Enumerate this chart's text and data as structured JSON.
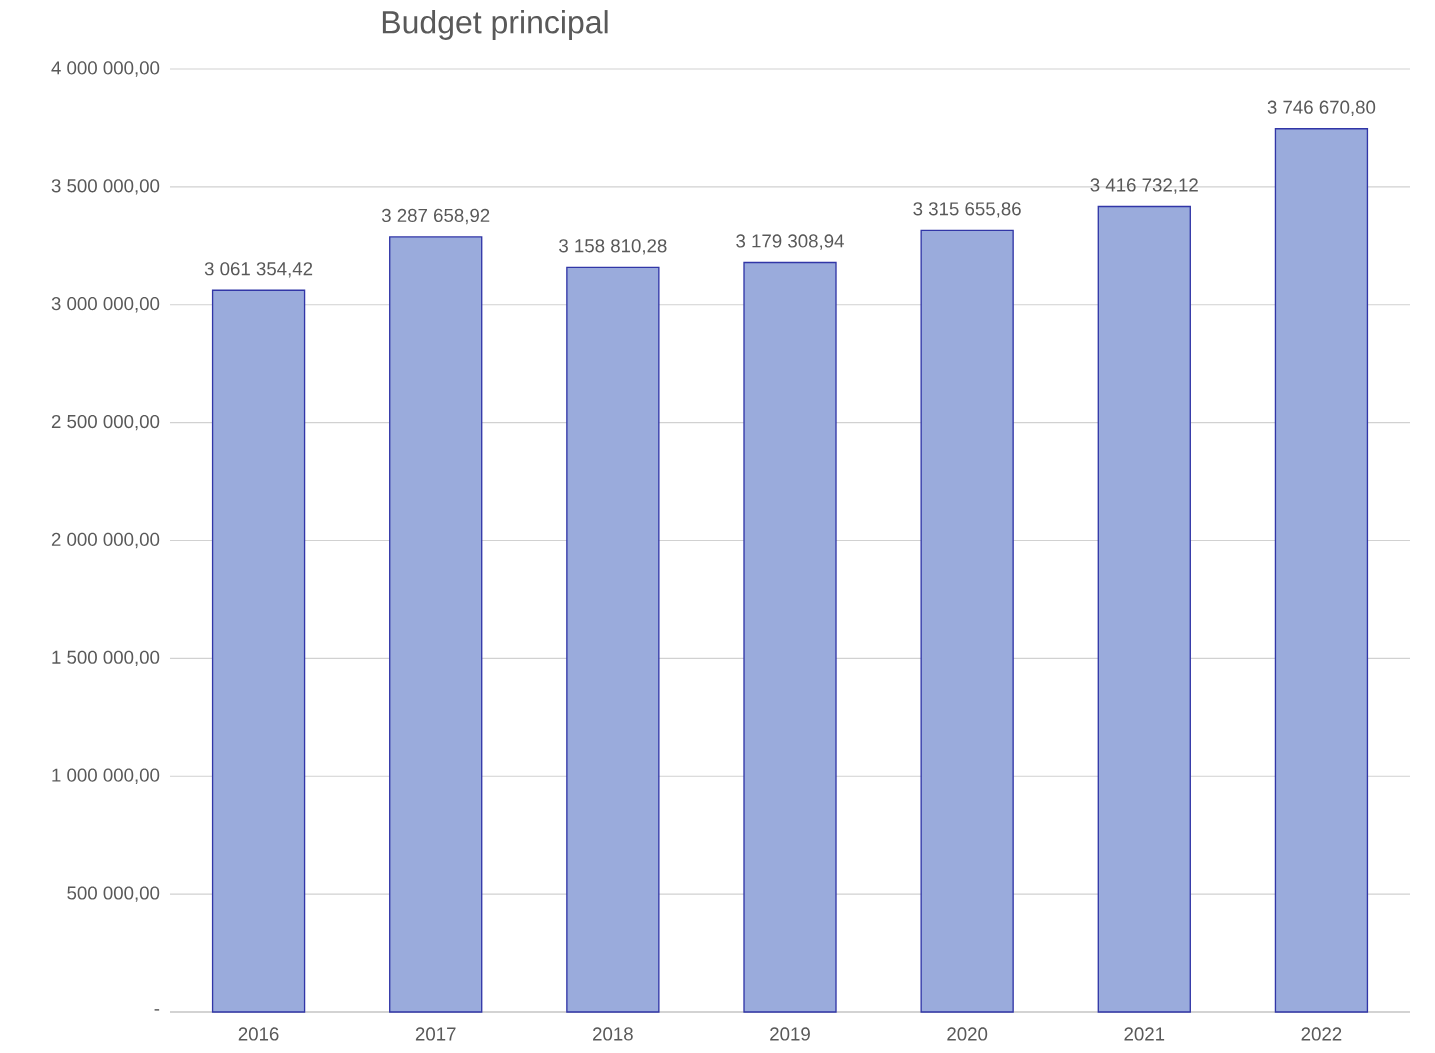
{
  "chart_data": {
    "type": "bar",
    "title": "Budget principal",
    "categories": [
      "2016",
      "2017",
      "2018",
      "2019",
      "2020",
      "2021",
      "2022"
    ],
    "values": [
      3061354.42,
      3287658.92,
      3158810.28,
      3179308.94,
      3315655.86,
      3416732.12,
      3746670.8
    ],
    "value_labels": [
      "3 061 354,42",
      "3 287 658,92",
      "3 158 810,28",
      "3 179 308,94",
      "3 315 655,86",
      "3 416 732,12",
      "3 746 670,80"
    ],
    "color": "#9aabdc",
    "ylim": [
      0,
      4000000
    ],
    "yticks": [
      {
        "value": 0,
        "label": "-"
      },
      {
        "value": 500000,
        "label": "500 000,00"
      },
      {
        "value": 1000000,
        "label": "1 000 000,00"
      },
      {
        "value": 1500000,
        "label": "1 500 000,00"
      },
      {
        "value": 2000000,
        "label": "2 000 000,00"
      },
      {
        "value": 2500000,
        "label": "2 500 000,00"
      },
      {
        "value": 3000000,
        "label": "3 000 000,00"
      },
      {
        "value": 3500000,
        "label": "3 500 000,00"
      },
      {
        "value": 4000000,
        "label": "4 000 000,00"
      }
    ],
    "grid": "y"
  }
}
